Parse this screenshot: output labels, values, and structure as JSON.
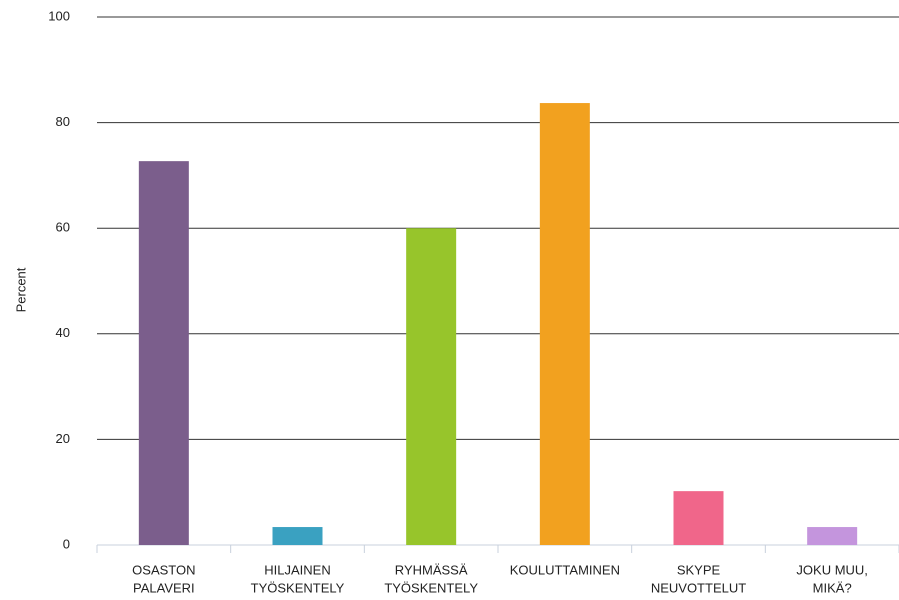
{
  "chart_data": {
    "type": "bar",
    "y_label": "Percent",
    "categories": [
      [
        "OSASTON",
        "PALAVERI"
      ],
      [
        "HILJAINEN",
        "TYÖSKENTELY"
      ],
      [
        "RYHMÄSSÄ",
        "TYÖSKENTELY"
      ],
      [
        "KOULUTTAMINEN"
      ],
      [
        "SKYPE",
        "NEUVOTTELUT"
      ],
      [
        "JOKU MUU,",
        "MIKÄ?"
      ]
    ],
    "values": [
      72.7,
      3.4,
      60,
      83.7,
      10.2,
      3.4
    ],
    "colors": [
      "#7b5e8c",
      "#3aa1c1",
      "#97c52b",
      "#f2a11f",
      "#f0668a",
      "#c495dd"
    ],
    "ylim": [
      0,
      100
    ],
    "yticks": [
      0,
      20,
      40,
      60,
      80,
      100
    ],
    "grid": true
  }
}
